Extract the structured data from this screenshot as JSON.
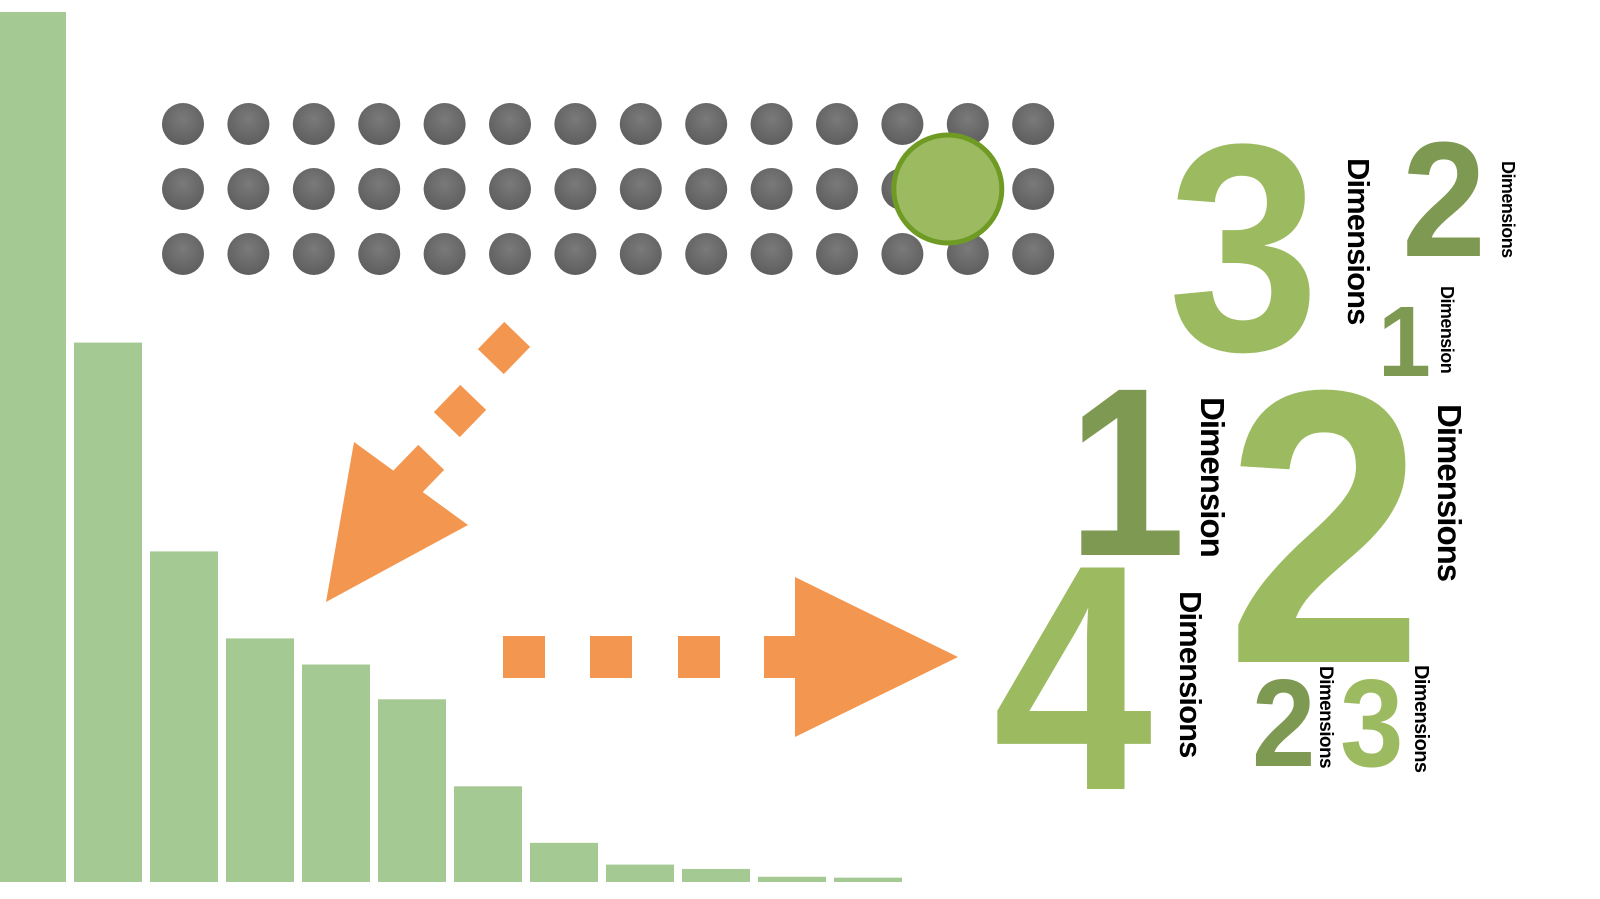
{
  "colors": {
    "bar": "#a5c993",
    "dot": "#666666",
    "highlight_fill": "#9cbb60",
    "highlight_stroke": "#6f9b25",
    "arrow": "#f39650",
    "digit_light": "#9cbb60",
    "digit_dark": "#7e9952"
  },
  "bar_chart": {
    "values": [
      100,
      62,
      38,
      28,
      25,
      21,
      11,
      4.5,
      2,
      1.5,
      0.6,
      0.5
    ]
  },
  "dot_grid": {
    "rows": 3,
    "columns": 14,
    "highlight": {
      "row": 1,
      "column": 12
    }
  },
  "word_cloud": [
    {
      "digit": "3",
      "label": "Dimensions",
      "tone": "light"
    },
    {
      "digit": "2",
      "label": "Dimensions",
      "tone": "dark"
    },
    {
      "digit": "1",
      "label": "Dimension",
      "tone": "dark"
    },
    {
      "digit": "1",
      "label": "Dimension",
      "tone": "dark"
    },
    {
      "digit": "2",
      "label": "Dimensions",
      "tone": "light"
    },
    {
      "digit": "4",
      "label": "Dimensions",
      "tone": "light"
    },
    {
      "digit": "2",
      "label": "Dimensions",
      "tone": "dark"
    },
    {
      "digit": "3",
      "label": "Dimensions",
      "tone": "light"
    }
  ]
}
